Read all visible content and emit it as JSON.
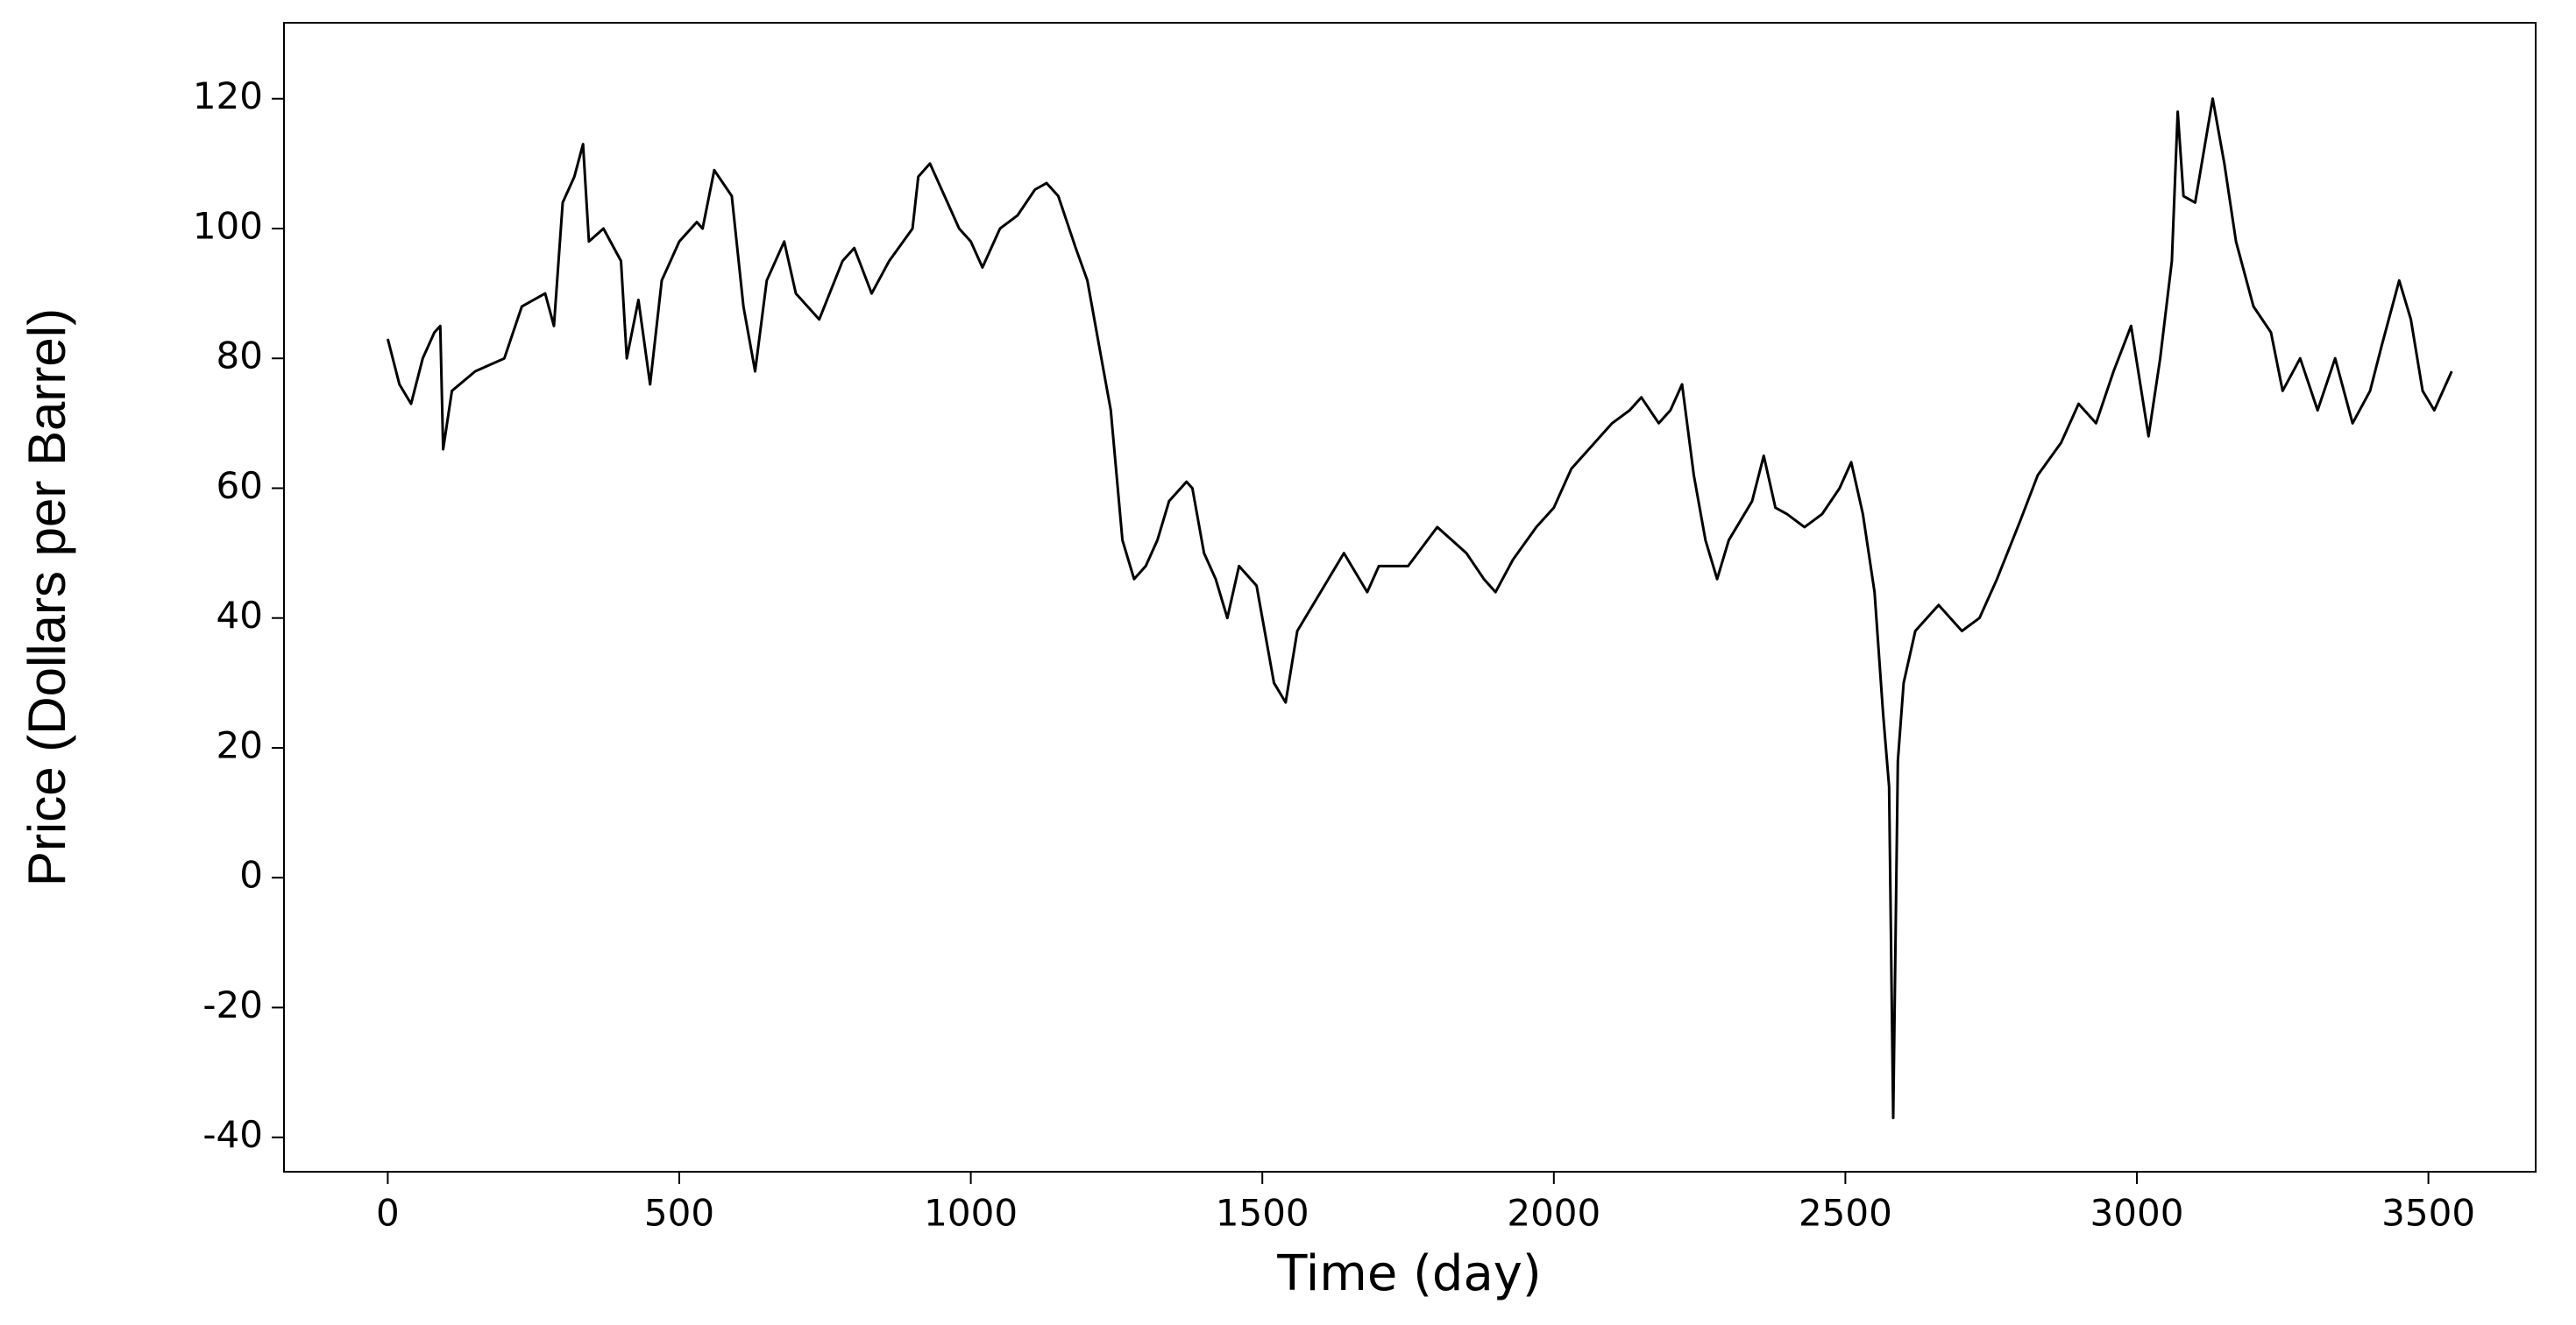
{
  "chart_data": {
    "type": "line",
    "x_label": "Time (day)",
    "y_label": "Price (Dollars per Barrel)",
    "x": [
      0,
      20,
      40,
      60,
      80,
      90,
      95,
      110,
      150,
      200,
      230,
      270,
      285,
      300,
      320,
      335,
      345,
      370,
      400,
      410,
      430,
      450,
      470,
      500,
      530,
      540,
      560,
      590,
      610,
      630,
      650,
      680,
      700,
      740,
      780,
      800,
      830,
      860,
      900,
      910,
      930,
      960,
      980,
      1000,
      1020,
      1050,
      1080,
      1110,
      1130,
      1150,
      1180,
      1200,
      1220,
      1240,
      1260,
      1280,
      1300,
      1320,
      1340,
      1370,
      1380,
      1400,
      1420,
      1440,
      1460,
      1490,
      1520,
      1540,
      1560,
      1600,
      1640,
      1680,
      1700,
      1750,
      1800,
      1850,
      1880,
      1900,
      1930,
      1970,
      2000,
      2030,
      2060,
      2100,
      2130,
      2150,
      2180,
      2200,
      2220,
      2240,
      2260,
      2280,
      2300,
      2340,
      2360,
      2380,
      2400,
      2430,
      2460,
      2490,
      2510,
      2530,
      2550,
      2565,
      2575,
      2582,
      2590,
      2600,
      2620,
      2660,
      2700,
      2730,
      2760,
      2800,
      2830,
      2870,
      2900,
      2930,
      2960,
      2990,
      3020,
      3040,
      3060,
      3070,
      3080,
      3100,
      3130,
      3150,
      3170,
      3200,
      3230,
      3250,
      3280,
      3310,
      3340,
      3370,
      3400,
      3420,
      3450,
      3470,
      3490,
      3510,
      3540
    ],
    "series": [
      {
        "name": "Price",
        "color": "#000000",
        "values": [
          83,
          76,
          73,
          80,
          84,
          85,
          66,
          75,
          78,
          80,
          88,
          90,
          85,
          104,
          108,
          113,
          98,
          100,
          95,
          80,
          89,
          76,
          92,
          98,
          101,
          100,
          109,
          105,
          88,
          78,
          92,
          98,
          90,
          86,
          95,
          97,
          90,
          95,
          100,
          108,
          110,
          104,
          100,
          98,
          94,
          100,
          102,
          106,
          107,
          105,
          97,
          92,
          82,
          72,
          52,
          46,
          48,
          52,
          58,
          61,
          60,
          50,
          46,
          40,
          48,
          45,
          30,
          27,
          38,
          44,
          50,
          44,
          48,
          48,
          54,
          50,
          46,
          44,
          49,
          54,
          57,
          63,
          66,
          70,
          72,
          74,
          70,
          72,
          76,
          62,
          52,
          46,
          52,
          58,
          65,
          57,
          56,
          54,
          56,
          60,
          64,
          56,
          44,
          25,
          14,
          -37,
          18,
          30,
          38,
          42,
          38,
          40,
          46,
          55,
          62,
          67,
          73,
          70,
          78,
          85,
          68,
          80,
          95,
          118,
          105,
          104,
          120,
          110,
          98,
          88,
          84,
          75,
          80,
          72,
          80,
          70,
          75,
          82,
          92,
          86,
          75,
          72,
          78
        ]
      }
    ],
    "xlim": [
      -178,
      3684
    ],
    "ylim": [
      -45.3,
      131.7
    ],
    "xticks": [
      0,
      500,
      1000,
      1500,
      2000,
      2500,
      3000,
      3500
    ],
    "yticks": [
      -40,
      -20,
      0,
      20,
      40,
      60,
      80,
      100,
      120
    ],
    "grid": false
  }
}
